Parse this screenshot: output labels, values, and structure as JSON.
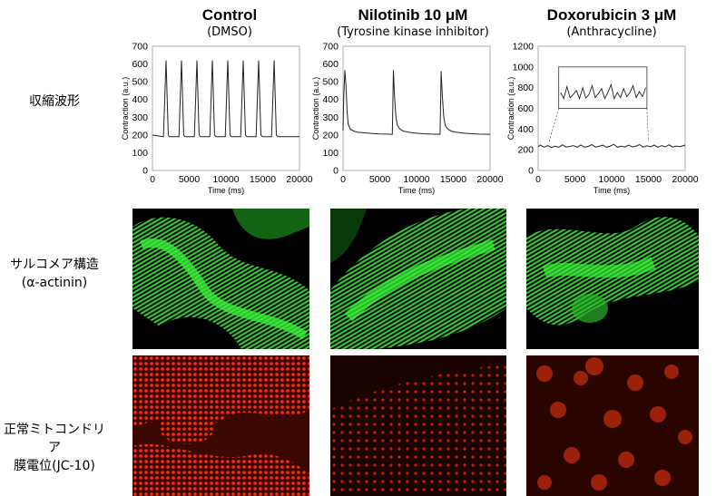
{
  "columns": [
    {
      "title": "Control",
      "subtitle": "(DMSO)"
    },
    {
      "title": "Nilotinib 10 μM",
      "subtitle": "(Tyrosine kinase inhibitor)"
    },
    {
      "title": "Doxorubicin 3 μM",
      "subtitle": "(Anthracycline)"
    }
  ],
  "rows": [
    {
      "label": "収縮波形"
    },
    {
      "label": "サルコメア構造",
      "label2": "(α-actinin)"
    },
    {
      "label": "正常ミトコンドリア",
      "label2": "膜電位(JC-10)"
    }
  ],
  "colors": {
    "line": "#222222",
    "green_stain": "#33e633",
    "red_stain": "#ff2a10"
  },
  "chart_data": [
    {
      "type": "line",
      "xlabel": "Time (ms)",
      "ylabel": "Contraction (a.u.)",
      "xlim": [
        0,
        20000
      ],
      "ylim": [
        0,
        700
      ],
      "xticks": [
        0,
        5000,
        10000,
        15000,
        20000
      ],
      "yticks": [
        0,
        100,
        200,
        300,
        400,
        500,
        600,
        700
      ],
      "grid": false,
      "series": [
        {
          "x": [
            0,
            1500,
            1850,
            2150,
            2350,
            3200,
            3600,
            3950,
            4250,
            4450,
            5300,
            5700,
            6050,
            6350,
            6550,
            7400,
            7800,
            8150,
            8450,
            8650,
            9500,
            9900,
            10250,
            10550,
            10750,
            11600,
            12000,
            12350,
            12650,
            12850,
            13700,
            14100,
            14450,
            14750,
            14950,
            15800,
            16200,
            16550,
            16850,
            17050,
            17900,
            18200,
            20000
          ],
          "y": [
            200,
            190,
            620,
            200,
            190,
            190,
            190,
            620,
            200,
            190,
            190,
            190,
            620,
            200,
            190,
            190,
            190,
            620,
            200,
            190,
            190,
            190,
            620,
            200,
            190,
            190,
            190,
            620,
            200,
            190,
            190,
            190,
            620,
            200,
            190,
            190,
            190,
            620,
            200,
            190,
            190,
            190,
            190
          ]
        }
      ]
    },
    {
      "type": "line",
      "xlabel": "Time (ms)",
      "ylabel": "Contraction (a.u.)",
      "xlim": [
        0,
        20000
      ],
      "ylim": [
        0,
        700
      ],
      "xticks": [
        0,
        5000,
        10000,
        15000,
        20000
      ],
      "yticks": [
        0,
        100,
        200,
        300,
        400,
        500,
        600,
        700
      ],
      "grid": false,
      "series": [
        {
          "x": [
            0,
            100,
            250,
            400,
            550,
            700,
            1000,
            1500,
            2000,
            3000,
            4000,
            5000,
            6000,
            6700,
            6850,
            7000,
            7200,
            7400,
            7700,
            8200,
            9000,
            10000,
            11000,
            12000,
            13200,
            13350,
            13500,
            13700,
            13900,
            14200,
            14700,
            15500,
            16500,
            17500,
            18500,
            20000
          ],
          "y": [
            225,
            420,
            565,
            480,
            330,
            260,
            232,
            222,
            215,
            212,
            208,
            206,
            205,
            204,
            565,
            420,
            300,
            255,
            235,
            222,
            215,
            210,
            207,
            205,
            204,
            560,
            420,
            300,
            255,
            235,
            222,
            215,
            210,
            207,
            205,
            204
          ]
        }
      ]
    },
    {
      "type": "line",
      "xlabel": "Time (ms)",
      "ylabel": "Contraction (a.u.)",
      "xlim": [
        0,
        20000
      ],
      "ylim": [
        0,
        1200
      ],
      "xticks": [
        0,
        5000,
        10000,
        15000,
        20000
      ],
      "yticks": [
        0,
        200,
        400,
        600,
        800,
        1000,
        1200
      ],
      "grid": false,
      "inset": true,
      "series": [
        {
          "x": [
            0,
            300,
            800,
            1300,
            1800,
            2300,
            2800,
            3300,
            3800,
            4300,
            4800,
            5300,
            5800,
            6300,
            6800,
            7300,
            7800,
            8300,
            8800,
            9300,
            9800,
            10300,
            10800,
            11300,
            11800,
            12300,
            12800,
            13300,
            13800,
            14300,
            14800,
            15300,
            15800,
            16300,
            16800,
            17300,
            17800,
            18300,
            18800,
            19300,
            20000
          ],
          "y": [
            230,
            245,
            225,
            240,
            222,
            236,
            224,
            248,
            226,
            232,
            240,
            224,
            246,
            225,
            232,
            250,
            226,
            234,
            244,
            224,
            236,
            252,
            224,
            236,
            226,
            244,
            228,
            236,
            250,
            226,
            238,
            228,
            246,
            224,
            240,
            228,
            248,
            226,
            236,
            230,
            245
          ]
        }
      ]
    }
  ]
}
